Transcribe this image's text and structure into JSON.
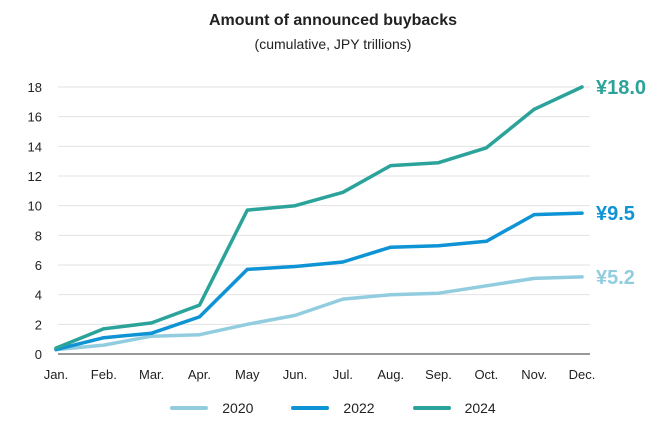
{
  "chart_data": {
    "type": "line",
    "title": "Amount of announced buybacks",
    "subtitle": "(cumulative, JPY trillions)",
    "categories": [
      "Jan.",
      "Feb.",
      "Mar.",
      "Apr.",
      "May",
      "Jun.",
      "Jul.",
      "Aug.",
      "Sep.",
      "Oct.",
      "Nov.",
      "Dec."
    ],
    "ylim": [
      0,
      18
    ],
    "yticks": [
      0,
      2,
      4,
      6,
      8,
      10,
      12,
      14,
      16,
      18
    ],
    "grid": "horizontal",
    "legend_position": "bottom",
    "series": [
      {
        "name": "2020",
        "color": "#92CDDF",
        "values": [
          0.3,
          0.6,
          1.2,
          1.3,
          2.0,
          2.6,
          3.7,
          4.0,
          4.1,
          4.6,
          5.1,
          5.2
        ],
        "end_label": "¥5.2"
      },
      {
        "name": "2022",
        "color": "#0E93D5",
        "values": [
          0.3,
          1.1,
          1.4,
          2.5,
          5.7,
          5.9,
          6.2,
          7.2,
          7.3,
          7.6,
          9.4,
          9.5
        ],
        "end_label": "¥9.5"
      },
      {
        "name": "2024",
        "color": "#2BA39A",
        "values": [
          0.4,
          1.7,
          2.1,
          3.3,
          9.7,
          10.0,
          10.9,
          12.7,
          12.9,
          13.9,
          16.5,
          18.0
        ],
        "end_label": "¥18.0"
      }
    ]
  }
}
